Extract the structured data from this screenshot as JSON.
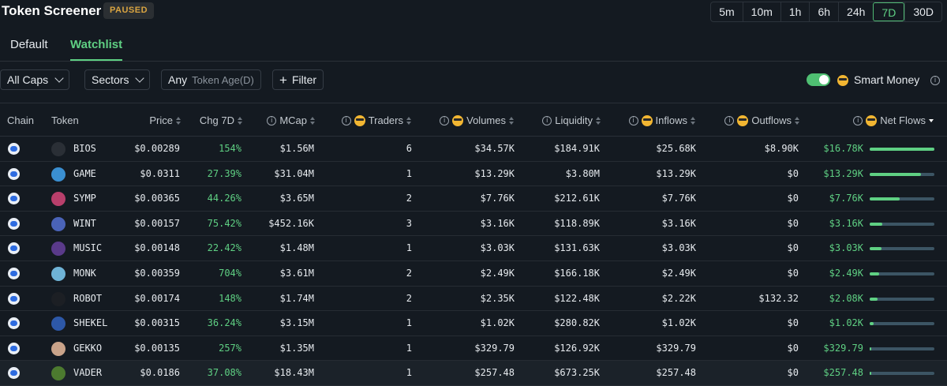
{
  "header": {
    "title": "Token Screener",
    "status_badge": "PAUSED",
    "timeframes": [
      "5m",
      "10m",
      "1h",
      "6h",
      "24h",
      "7D",
      "30D"
    ],
    "active_timeframe": "7D"
  },
  "tabs": [
    {
      "label": "Default",
      "active": false
    },
    {
      "label": "Watchlist",
      "active": true
    }
  ],
  "filters": {
    "caps": "All Caps",
    "sectors": "Sectors",
    "token_age_value": "Any",
    "token_age_label": "Token Age(D)",
    "add_filter": "Filter",
    "smart_money_label": "Smart Money",
    "smart_money_enabled": true
  },
  "columns": {
    "chain": "Chain",
    "token": "Token",
    "price": "Price",
    "chg": "Chg 7D",
    "mcap": "MCap",
    "traders": "Traders",
    "volumes": "Volumes",
    "liquidity": "Liquidity",
    "inflows": "Inflows",
    "outflows": "Outflows",
    "netflows": "Net Flows"
  },
  "rows": [
    {
      "token": "BIOS",
      "price": "$0.00289",
      "chg": "154%",
      "mcap": "$1.56M",
      "traders": "6",
      "volumes": "$34.57K",
      "liquidity": "$184.91K",
      "inflows": "$25.68K",
      "outflows": "$8.90K",
      "netflows": "$16.78K",
      "netflow_fraction": 1.0,
      "icon_color": "#2a2f36"
    },
    {
      "token": "GAME",
      "price": "$0.0311",
      "chg": "27.39%",
      "mcap": "$31.04M",
      "traders": "1",
      "volumes": "$13.29K",
      "liquidity": "$3.80M",
      "inflows": "$13.29K",
      "outflows": "$0",
      "netflows": "$13.29K",
      "netflow_fraction": 0.79,
      "icon_color": "#3a8fd1"
    },
    {
      "token": "SYMP",
      "price": "$0.00365",
      "chg": "44.26%",
      "mcap": "$3.65M",
      "traders": "2",
      "volumes": "$7.76K",
      "liquidity": "$212.61K",
      "inflows": "$7.76K",
      "outflows": "$0",
      "netflows": "$7.76K",
      "netflow_fraction": 0.46,
      "icon_color": "#b83f6b"
    },
    {
      "token": "WINT",
      "price": "$0.00157",
      "chg": "75.42%",
      "mcap": "$452.16K",
      "traders": "3",
      "volumes": "$3.16K",
      "liquidity": "$118.89K",
      "inflows": "$3.16K",
      "outflows": "$0",
      "netflows": "$3.16K",
      "netflow_fraction": 0.19,
      "icon_color": "#4a63b8"
    },
    {
      "token": "MUSIC",
      "price": "$0.00148",
      "chg": "22.42%",
      "mcap": "$1.48M",
      "traders": "1",
      "volumes": "$3.03K",
      "liquidity": "$131.63K",
      "inflows": "$3.03K",
      "outflows": "$0",
      "netflows": "$3.03K",
      "netflow_fraction": 0.18,
      "icon_color": "#5a3a8a"
    },
    {
      "token": "MONK",
      "price": "$0.00359",
      "chg": "704%",
      "mcap": "$3.61M",
      "traders": "2",
      "volumes": "$2.49K",
      "liquidity": "$166.18K",
      "inflows": "$2.49K",
      "outflows": "$0",
      "netflows": "$2.49K",
      "netflow_fraction": 0.15,
      "icon_color": "#6fb3d6"
    },
    {
      "token": "ROBOT",
      "price": "$0.00174",
      "chg": "148%",
      "mcap": "$1.74M",
      "traders": "2",
      "volumes": "$2.35K",
      "liquidity": "$122.48K",
      "inflows": "$2.22K",
      "outflows": "$132.32",
      "netflows": "$2.08K",
      "netflow_fraction": 0.12,
      "icon_color": "#1c1f24"
    },
    {
      "token": "SHEKEL",
      "price": "$0.00315",
      "chg": "36.24%",
      "mcap": "$3.15M",
      "traders": "1",
      "volumes": "$1.02K",
      "liquidity": "$280.82K",
      "inflows": "$1.02K",
      "outflows": "$0",
      "netflows": "$1.02K",
      "netflow_fraction": 0.06,
      "icon_color": "#2d58a8"
    },
    {
      "token": "GEKKO",
      "price": "$0.00135",
      "chg": "257%",
      "mcap": "$1.35M",
      "traders": "1",
      "volumes": "$329.79",
      "liquidity": "$126.92K",
      "inflows": "$329.79",
      "outflows": "$0",
      "netflows": "$329.79",
      "netflow_fraction": 0.02,
      "icon_color": "#c9a38a"
    },
    {
      "token": "VADER",
      "price": "$0.0186",
      "chg": "37.08%",
      "mcap": "$18.43M",
      "traders": "1",
      "volumes": "$257.48",
      "liquidity": "$673.25K",
      "inflows": "$257.48",
      "outflows": "$0",
      "netflows": "$257.48",
      "netflow_fraction": 0.015,
      "icon_color": "#4c7a2f"
    }
  ],
  "colors": {
    "accent_green": "#5fd083",
    "background": "#141a21",
    "badge_text": "#d9a441",
    "bar_track": "#3c5564"
  }
}
